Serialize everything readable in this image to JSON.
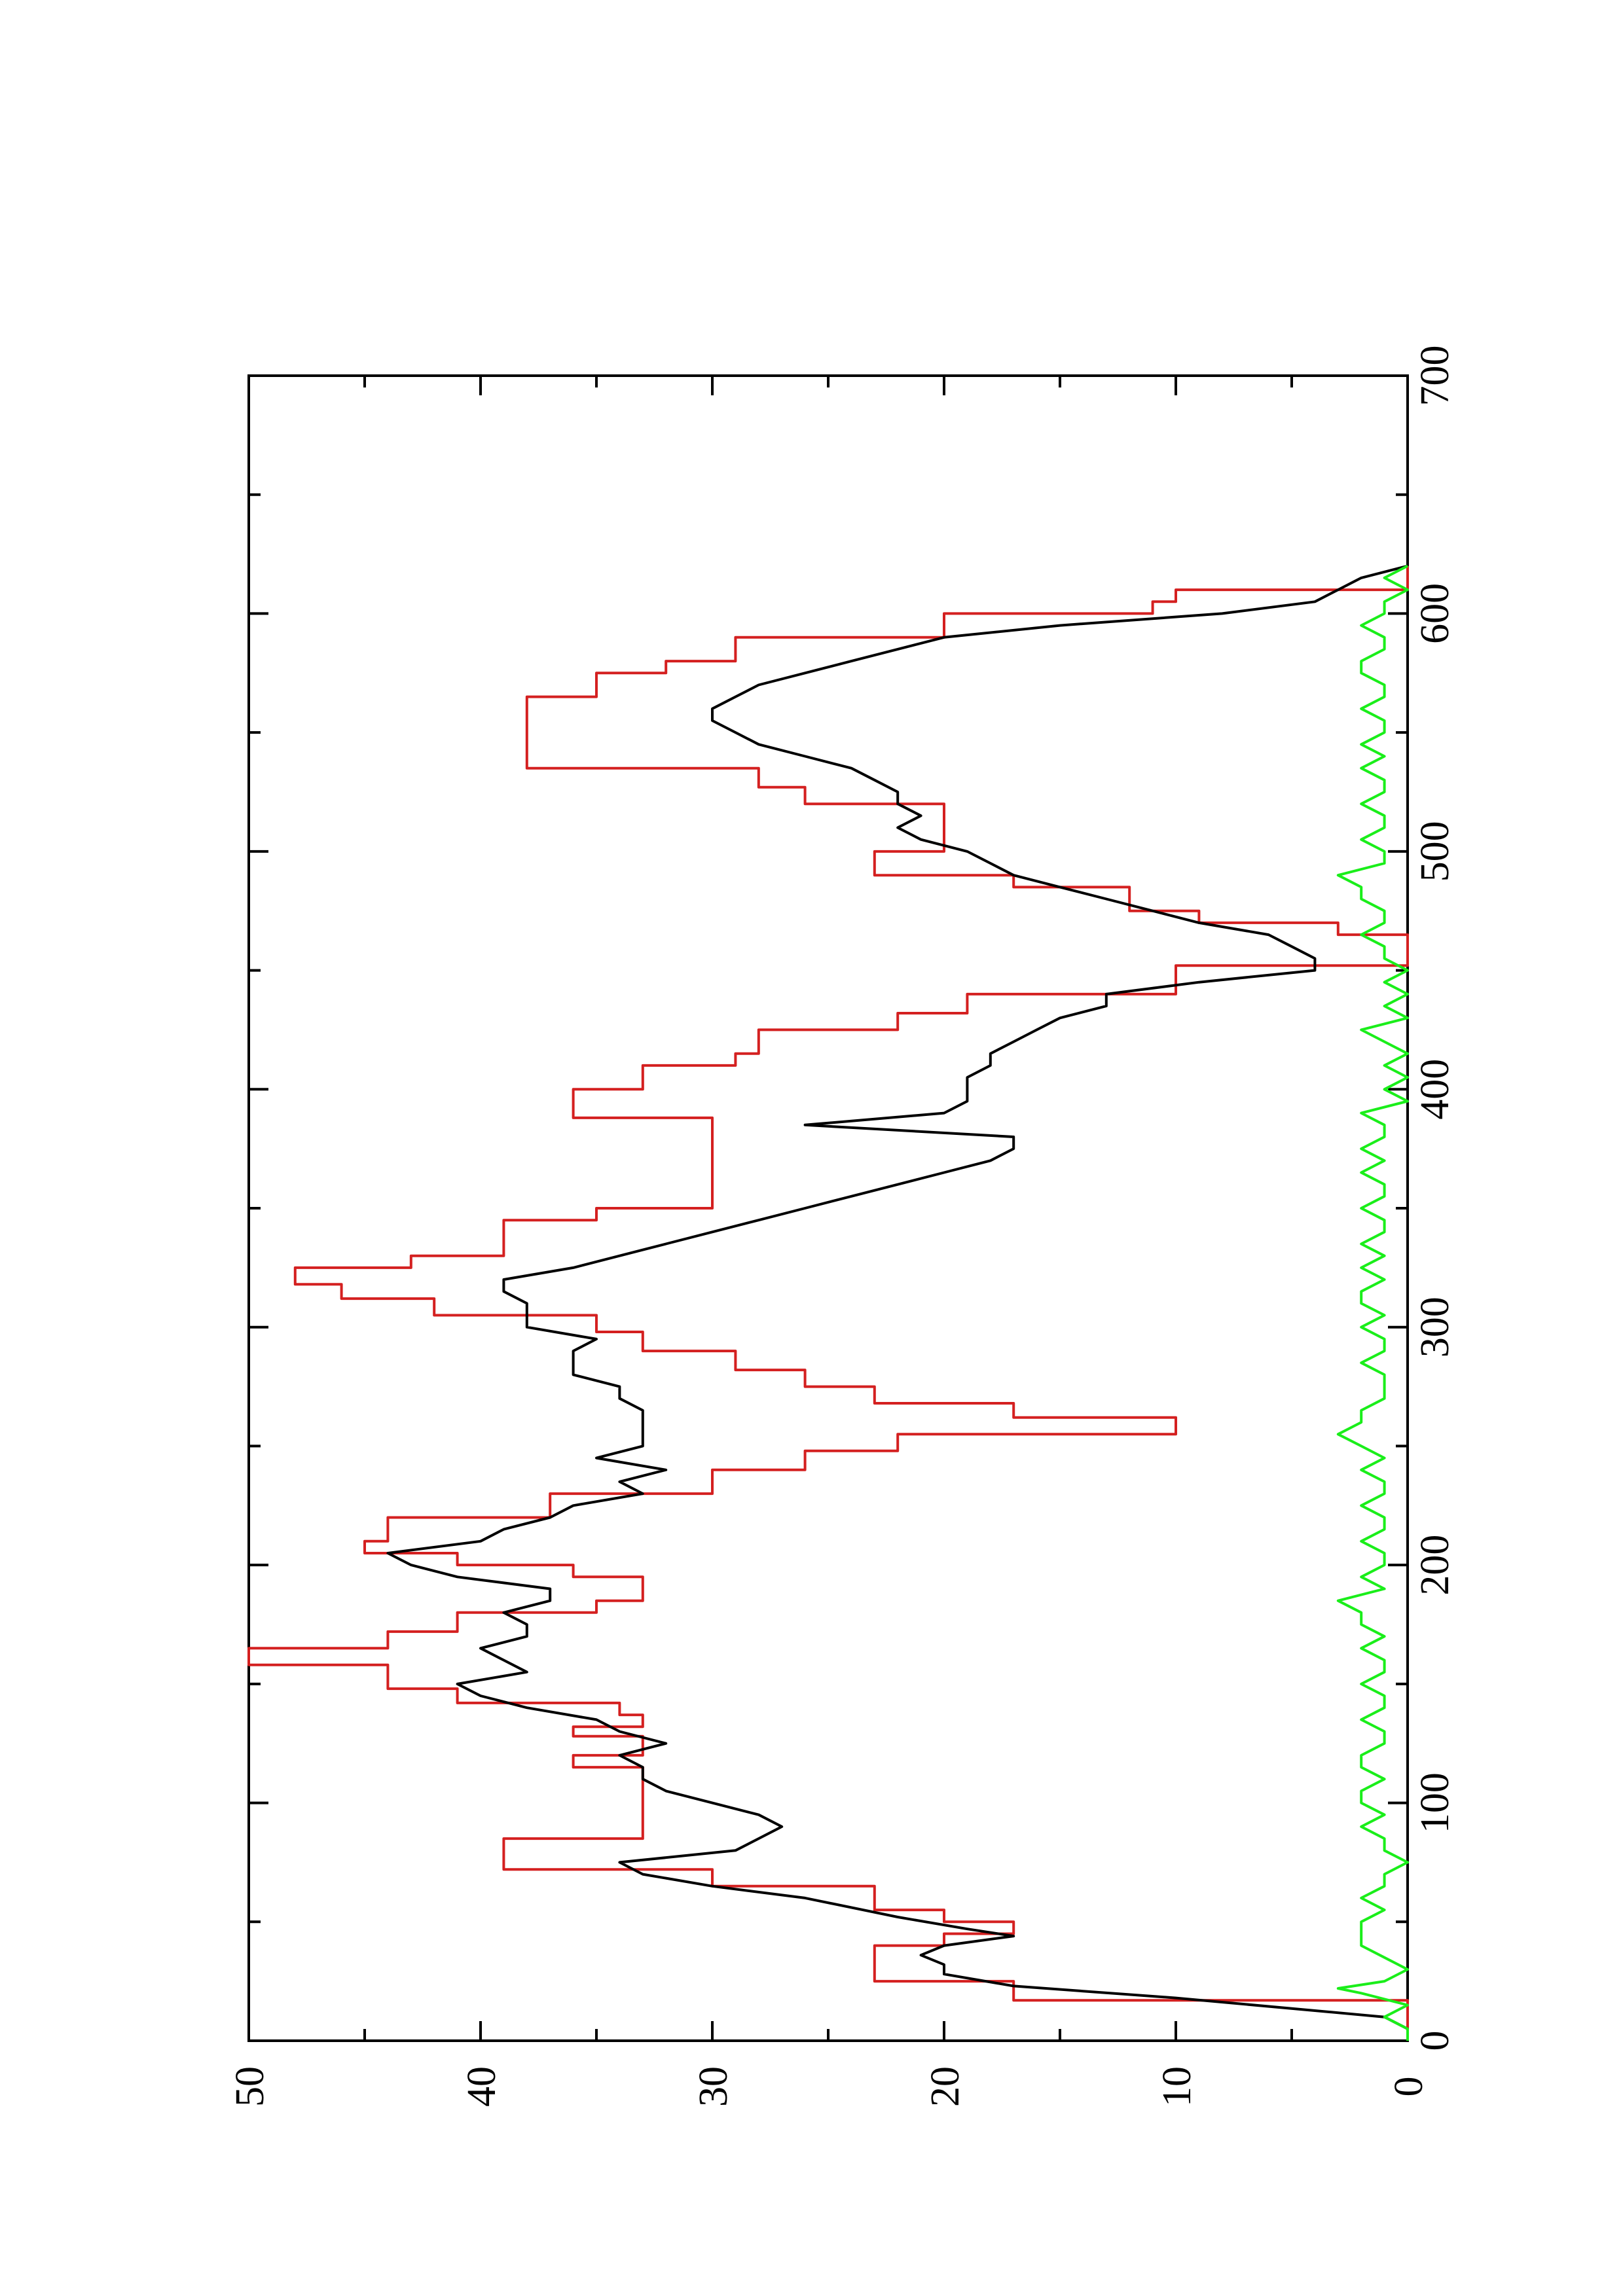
{
  "chart_data": {
    "type": "line",
    "orientation": "rotated-90-clockwise",
    "title": "",
    "xlabel": "",
    "ylabel": "",
    "xlim": [
      0,
      700
    ],
    "ylim": [
      0,
      50
    ],
    "x_ticks": [
      0,
      100,
      200,
      300,
      400,
      500,
      600,
      700
    ],
    "y_ticks": [
      0,
      10,
      20,
      30,
      40,
      50
    ],
    "grid": false,
    "legend": "none",
    "series": [
      {
        "color": "#d42020",
        "style": "stepped",
        "points": [
          [
            0,
            0
          ],
          [
            9,
            0
          ],
          [
            17,
            17
          ],
          [
            25,
            23
          ],
          [
            35,
            23
          ],
          [
            40,
            20
          ],
          [
            45,
            17
          ],
          [
            50,
            20
          ],
          [
            55,
            23
          ],
          [
            65,
            30
          ],
          [
            72,
            39
          ],
          [
            80,
            39
          ],
          [
            85,
            33
          ],
          [
            110,
            33
          ],
          [
            115,
            36
          ],
          [
            120,
            33
          ],
          [
            125,
            33
          ],
          [
            128,
            36
          ],
          [
            132,
            33
          ],
          [
            137,
            34
          ],
          [
            142,
            41
          ],
          [
            148,
            44
          ],
          [
            158,
            50
          ],
          [
            165,
            44
          ],
          [
            172,
            41
          ],
          [
            180,
            35
          ],
          [
            185,
            33
          ],
          [
            190,
            33
          ],
          [
            195,
            36
          ],
          [
            200,
            41
          ],
          [
            205,
            45
          ],
          [
            210,
            44
          ],
          [
            220,
            37
          ],
          [
            230,
            30
          ],
          [
            240,
            26
          ],
          [
            248,
            22
          ],
          [
            255,
            10
          ],
          [
            262,
            17
          ],
          [
            268,
            23
          ],
          [
            275,
            26
          ],
          [
            282,
            29
          ],
          [
            290,
            33
          ],
          [
            298,
            35
          ],
          [
            305,
            42
          ],
          [
            312,
            46
          ],
          [
            318,
            48
          ],
          [
            325,
            43
          ],
          [
            330,
            39
          ],
          [
            340,
            39
          ],
          [
            345,
            35
          ],
          [
            350,
            30
          ],
          [
            385,
            30
          ],
          [
            388,
            36
          ],
          [
            395,
            36
          ],
          [
            400,
            33
          ],
          [
            410,
            29
          ],
          [
            415,
            28
          ],
          [
            425,
            22
          ],
          [
            432,
            19
          ],
          [
            440,
            10
          ],
          [
            452,
            0
          ],
          [
            460,
            0
          ],
          [
            465,
            3
          ],
          [
            470,
            9
          ],
          [
            475,
            12
          ],
          [
            485,
            17
          ],
          [
            490,
            23
          ],
          [
            495,
            23
          ],
          [
            500,
            20
          ],
          [
            515,
            20
          ],
          [
            520,
            26
          ],
          [
            527,
            28
          ],
          [
            535,
            38
          ],
          [
            560,
            38
          ],
          [
            565,
            35
          ],
          [
            575,
            32
          ],
          [
            580,
            29
          ],
          [
            590,
            20
          ],
          [
            600,
            11
          ],
          [
            605,
            10
          ],
          [
            610,
            0
          ],
          [
            620,
            0
          ]
        ]
      },
      {
        "color": "#000000",
        "style": "line",
        "points": [
          [
            0,
            0
          ],
          [
            5,
            0
          ],
          [
            10,
            1
          ],
          [
            18,
            10
          ],
          [
            23,
            17
          ],
          [
            28,
            20
          ],
          [
            32,
            20
          ],
          [
            36,
            21
          ],
          [
            40,
            20
          ],
          [
            44,
            17
          ],
          [
            47,
            19
          ],
          [
            52,
            22
          ],
          [
            60,
            26
          ],
          [
            65,
            30
          ],
          [
            70,
            33
          ],
          [
            75,
            34
          ],
          [
            80,
            29
          ],
          [
            85,
            28
          ],
          [
            90,
            27
          ],
          [
            95,
            28
          ],
          [
            100,
            30
          ],
          [
            105,
            32
          ],
          [
            110,
            33
          ],
          [
            115,
            33
          ],
          [
            120,
            34
          ],
          [
            125,
            32
          ],
          [
            130,
            34
          ],
          [
            135,
            35
          ],
          [
            140,
            38
          ],
          [
            145,
            40
          ],
          [
            150,
            41
          ],
          [
            155,
            38
          ],
          [
            160,
            39
          ],
          [
            165,
            40
          ],
          [
            170,
            38
          ],
          [
            175,
            38
          ],
          [
            180,
            39
          ],
          [
            185,
            37
          ],
          [
            190,
            37
          ],
          [
            195,
            41
          ],
          [
            200,
            43
          ],
          [
            205,
            44
          ],
          [
            210,
            40
          ],
          [
            215,
            39
          ],
          [
            220,
            37
          ],
          [
            225,
            36
          ],
          [
            230,
            33
          ],
          [
            235,
            34
          ],
          [
            240,
            32
          ],
          [
            245,
            35
          ],
          [
            250,
            33
          ],
          [
            255,
            33
          ],
          [
            260,
            33
          ],
          [
            265,
            33
          ],
          [
            270,
            34
          ],
          [
            275,
            34
          ],
          [
            280,
            36
          ],
          [
            285,
            36
          ],
          [
            290,
            36
          ],
          [
            295,
            35
          ],
          [
            300,
            38
          ],
          [
            305,
            38
          ],
          [
            310,
            38
          ],
          [
            315,
            39
          ],
          [
            320,
            39
          ],
          [
            325,
            36
          ],
          [
            330,
            34
          ],
          [
            335,
            32
          ],
          [
            340,
            30
          ],
          [
            345,
            28
          ],
          [
            350,
            26
          ],
          [
            355,
            24
          ],
          [
            360,
            22
          ],
          [
            365,
            20
          ],
          [
            370,
            18
          ],
          [
            375,
            17
          ],
          [
            380,
            17
          ],
          [
            385,
            26
          ],
          [
            390,
            20
          ],
          [
            395,
            19
          ],
          [
            400,
            19
          ],
          [
            405,
            19
          ],
          [
            410,
            18
          ],
          [
            415,
            18
          ],
          [
            420,
            17
          ],
          [
            425,
            16
          ],
          [
            430,
            15
          ],
          [
            435,
            13
          ],
          [
            440,
            13
          ],
          [
            445,
            9
          ],
          [
            450,
            4
          ],
          [
            455,
            4
          ],
          [
            460,
            5
          ],
          [
            465,
            6
          ],
          [
            470,
            9
          ],
          [
            475,
            11
          ],
          [
            480,
            13
          ],
          [
            485,
            15
          ],
          [
            490,
            17
          ],
          [
            495,
            18
          ],
          [
            500,
            19
          ],
          [
            505,
            21
          ],
          [
            510,
            22
          ],
          [
            515,
            21
          ],
          [
            520,
            22
          ],
          [
            525,
            22
          ],
          [
            530,
            23
          ],
          [
            535,
            24
          ],
          [
            540,
            26
          ],
          [
            545,
            28
          ],
          [
            550,
            29
          ],
          [
            555,
            30
          ],
          [
            560,
            30
          ],
          [
            565,
            29
          ],
          [
            570,
            28
          ],
          [
            575,
            26
          ],
          [
            580,
            24
          ],
          [
            585,
            22
          ],
          [
            590,
            20
          ],
          [
            595,
            15
          ],
          [
            600,
            8
          ],
          [
            605,
            4
          ],
          [
            610,
            3
          ],
          [
            615,
            2
          ],
          [
            620,
            0
          ]
        ]
      },
      {
        "color": "#1aee1a",
        "style": "noisy",
        "points": [
          [
            0,
            0
          ],
          [
            5,
            0
          ],
          [
            10,
            1
          ],
          [
            15,
            0
          ],
          [
            20,
            2
          ],
          [
            22,
            3
          ],
          [
            25,
            1
          ],
          [
            30,
            0
          ],
          [
            35,
            1
          ],
          [
            40,
            2
          ],
          [
            45,
            2
          ],
          [
            50,
            2
          ],
          [
            55,
            1
          ],
          [
            60,
            2
          ],
          [
            65,
            1
          ],
          [
            70,
            1
          ],
          [
            75,
            0
          ],
          [
            80,
            1
          ],
          [
            85,
            1
          ],
          [
            90,
            2
          ],
          [
            95,
            1
          ],
          [
            100,
            2
          ],
          [
            105,
            2
          ],
          [
            110,
            1
          ],
          [
            115,
            2
          ],
          [
            120,
            2
          ],
          [
            125,
            1
          ],
          [
            130,
            1
          ],
          [
            135,
            2
          ],
          [
            140,
            1
          ],
          [
            145,
            1
          ],
          [
            150,
            2
          ],
          [
            155,
            1
          ],
          [
            160,
            1
          ],
          [
            165,
            2
          ],
          [
            170,
            1
          ],
          [
            175,
            2
          ],
          [
            180,
            2
          ],
          [
            185,
            3
          ],
          [
            190,
            1
          ],
          [
            195,
            2
          ],
          [
            200,
            1
          ],
          [
            205,
            1
          ],
          [
            210,
            2
          ],
          [
            215,
            1
          ],
          [
            220,
            1
          ],
          [
            225,
            2
          ],
          [
            230,
            1
          ],
          [
            235,
            1
          ],
          [
            240,
            2
          ],
          [
            245,
            1
          ],
          [
            250,
            2
          ],
          [
            255,
            3
          ],
          [
            260,
            2
          ],
          [
            265,
            2
          ],
          [
            270,
            1
          ],
          [
            275,
            1
          ],
          [
            280,
            1
          ],
          [
            285,
            2
          ],
          [
            290,
            1
          ],
          [
            295,
            1
          ],
          [
            300,
            2
          ],
          [
            305,
            1
          ],
          [
            310,
            2
          ],
          [
            315,
            2
          ],
          [
            320,
            1
          ],
          [
            325,
            2
          ],
          [
            330,
            1
          ],
          [
            335,
            2
          ],
          [
            340,
            1
          ],
          [
            345,
            1
          ],
          [
            350,
            2
          ],
          [
            355,
            1
          ],
          [
            360,
            1
          ],
          [
            365,
            2
          ],
          [
            370,
            1
          ],
          [
            375,
            2
          ],
          [
            380,
            1
          ],
          [
            385,
            1
          ],
          [
            390,
            2
          ],
          [
            395,
            0
          ],
          [
            400,
            1
          ],
          [
            405,
            0
          ],
          [
            410,
            1
          ],
          [
            415,
            0
          ],
          [
            420,
            1
          ],
          [
            425,
            2
          ],
          [
            430,
            0
          ],
          [
            435,
            1
          ],
          [
            440,
            0
          ],
          [
            445,
            1
          ],
          [
            450,
            0
          ],
          [
            455,
            1
          ],
          [
            460,
            1
          ],
          [
            465,
            2
          ],
          [
            470,
            1
          ],
          [
            475,
            1
          ],
          [
            480,
            2
          ],
          [
            485,
            2
          ],
          [
            490,
            3
          ],
          [
            495,
            1
          ],
          [
            500,
            1
          ],
          [
            505,
            2
          ],
          [
            510,
            1
          ],
          [
            515,
            1
          ],
          [
            520,
            2
          ],
          [
            525,
            1
          ],
          [
            530,
            1
          ],
          [
            535,
            2
          ],
          [
            540,
            1
          ],
          [
            545,
            2
          ],
          [
            550,
            1
          ],
          [
            555,
            1
          ],
          [
            560,
            2
          ],
          [
            565,
            1
          ],
          [
            570,
            1
          ],
          [
            575,
            2
          ],
          [
            580,
            2
          ],
          [
            585,
            1
          ],
          [
            590,
            1
          ],
          [
            595,
            2
          ],
          [
            600,
            1
          ],
          [
            605,
            1
          ],
          [
            610,
            0
          ],
          [
            615,
            1
          ],
          [
            620,
            0
          ]
        ]
      }
    ]
  }
}
